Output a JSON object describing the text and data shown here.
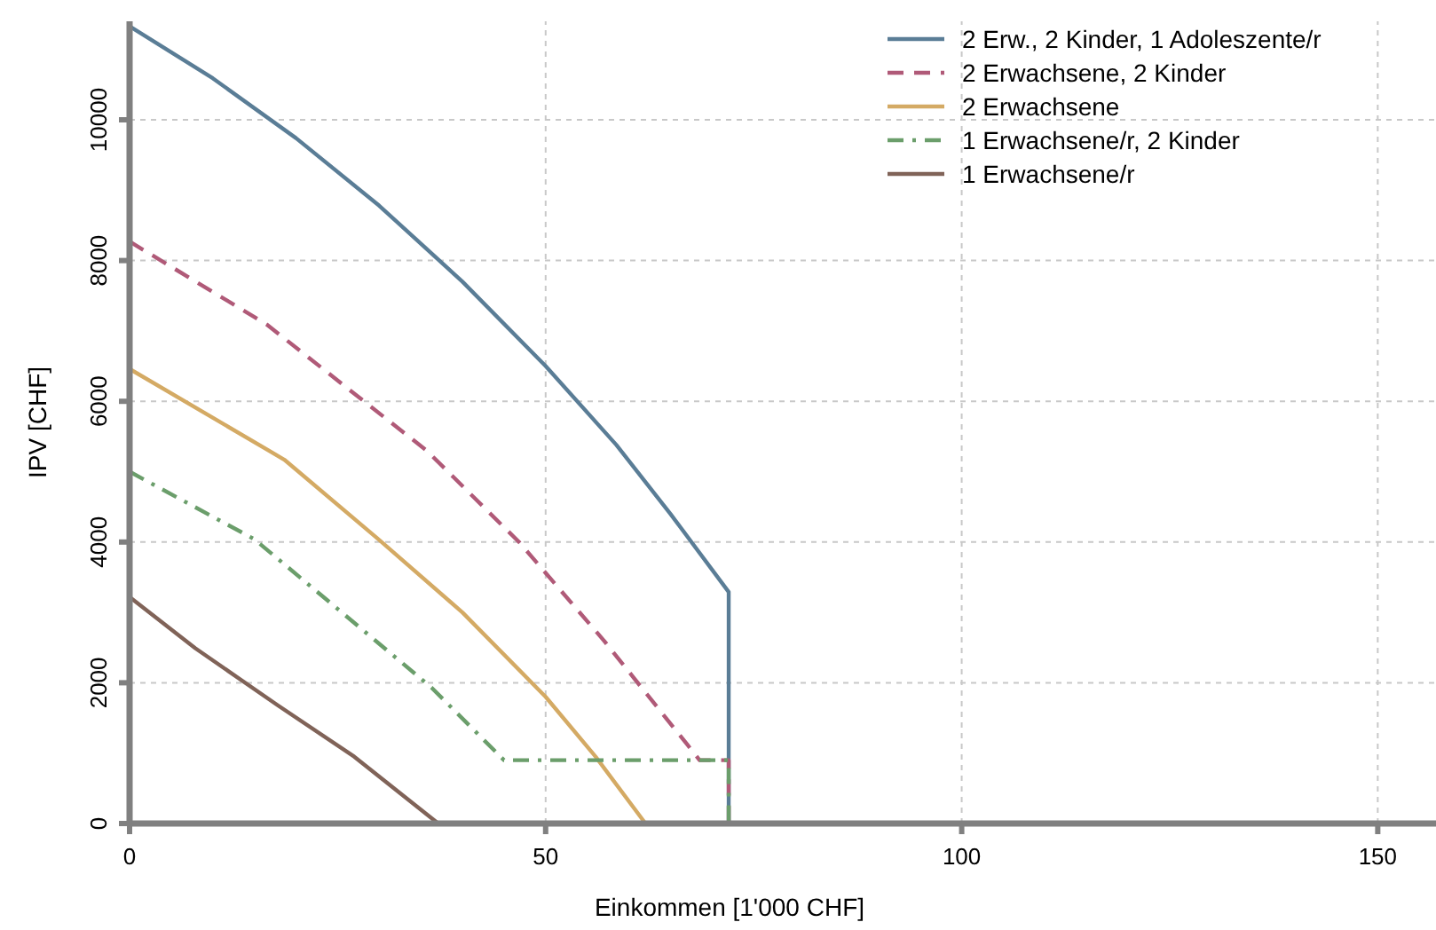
{
  "chart_data": {
    "type": "line",
    "xlabel": "Einkommen [1'000 CHF]",
    "ylabel": "IPV [CHF]",
    "xlim": [
      0,
      157
    ],
    "xticks": [
      0,
      50,
      100,
      150
    ],
    "ylim": [
      0,
      11400
    ],
    "yticks": [
      0,
      2000,
      4000,
      6000,
      8000,
      10000
    ],
    "grid": true,
    "legend": "top right",
    "marker": "none",
    "series": [
      {
        "name": "2 Erw., 2 Kinder, 1 Adoleszente/r",
        "color": "#5a7d96",
        "line_style": "solid",
        "x": [
          0,
          10,
          20,
          30,
          40,
          50,
          58.5,
          65,
          72,
          72
        ],
        "values": [
          11330,
          10590,
          9740,
          8780,
          7700,
          6500,
          5380,
          4400,
          3290,
          0
        ]
      },
      {
        "name": "2 Erwachsene, 2 Kinder",
        "color": "#b05a78",
        "line_style": "dashed",
        "x": [
          0,
          16.5,
          28.6,
          35.7,
          46.8,
          57,
          67.1,
          68.5,
          72,
          72
        ],
        "values": [
          8270,
          7090,
          5960,
          5300,
          4000,
          2600,
          1110,
          900,
          900,
          0
        ]
      },
      {
        "name": "2 Erwachsene",
        "color": "#d4aa64",
        "line_style": "solid",
        "x": [
          0,
          18.6,
          29.9,
          40,
          50,
          56,
          62
        ],
        "values": [
          6460,
          5170,
          4040,
          3000,
          1800,
          950,
          0
        ]
      },
      {
        "name": "1 Erwachsene/r, 2 Kinder",
        "color": "#6b9e6b",
        "line_style": "dashdot",
        "x": [
          0,
          15,
          25,
          36.3,
          45,
          72,
          72
        ],
        "values": [
          5000,
          4040,
          3050,
          1930,
          900,
          900,
          0
        ]
      },
      {
        "name": "1 Erwachsene/r",
        "color": "#806358",
        "line_style": "solid",
        "x": [
          0,
          7.9,
          17.8,
          27,
          37.1
        ],
        "values": [
          3220,
          2490,
          1680,
          950,
          0
        ]
      }
    ]
  }
}
